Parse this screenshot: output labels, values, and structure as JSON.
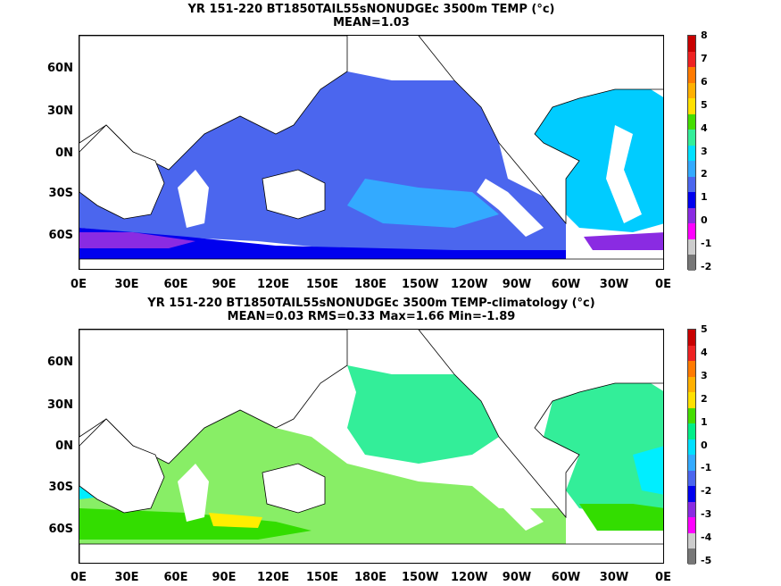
{
  "panels": [
    {
      "title_line1": "YR 151-220 BT1850TAIL55sNONUDGEc 3500m TEMP (°c)",
      "title_line2": "MEAN=1.03",
      "colorbar_labels": [
        "8",
        "7",
        "6",
        "5",
        "4",
        "3",
        "2",
        "1",
        "0",
        "-1",
        "-2"
      ],
      "colorbar_colors": [
        "#c80000",
        "#ee2222",
        "#ff7a00",
        "#ffb000",
        "#ffe000",
        "#44dd00",
        "#33ee99",
        "#00e0ff",
        "#33aaff",
        "#4b66ee",
        "#0000ee",
        "#8a2be2",
        "#ff00ff",
        "#cccccc",
        "#777777"
      ]
    },
    {
      "title_line1": "YR 151-220 BT1850TAIL55sNONUDGEc 3500m TEMP-climatology (°c)",
      "title_line2": "MEAN=0.03   RMS=0.33   Max=1.66   Min=-1.89",
      "colorbar_labels": [
        "5",
        "4",
        "3",
        "2",
        "1",
        "0",
        "-1",
        "-2",
        "-3",
        "-4",
        "-5"
      ],
      "colorbar_colors": [
        "#c80000",
        "#ee2222",
        "#ff7a00",
        "#ffb000",
        "#ffe000",
        "#44dd00",
        "#00ee88",
        "#00e0ff",
        "#33aaff",
        "#4b66ee",
        "#0000ee",
        "#8a2be2",
        "#ff00ff",
        "#cccccc",
        "#777777"
      ]
    }
  ],
  "lat_labels": [
    "60N",
    "30N",
    "0N",
    "30S",
    "60S"
  ],
  "lon_labels": [
    "0E",
    "30E",
    "60E",
    "90E",
    "120E",
    "150E",
    "180E",
    "150W",
    "120W",
    "90W",
    "60W",
    "30W",
    "0E"
  ],
  "colors": {
    "top_main": "#4b66ee",
    "top_light": "#33aaff",
    "top_cyan": "#00ccff",
    "top_deep": "#0000ee",
    "top_purple": "#8a2be2",
    "bot_main": "#33ee99",
    "bot_light": "#88ee66",
    "bot_green": "#33dd00",
    "bot_yellow": "#ffee00",
    "bot_cyan": "#00eeff"
  }
}
